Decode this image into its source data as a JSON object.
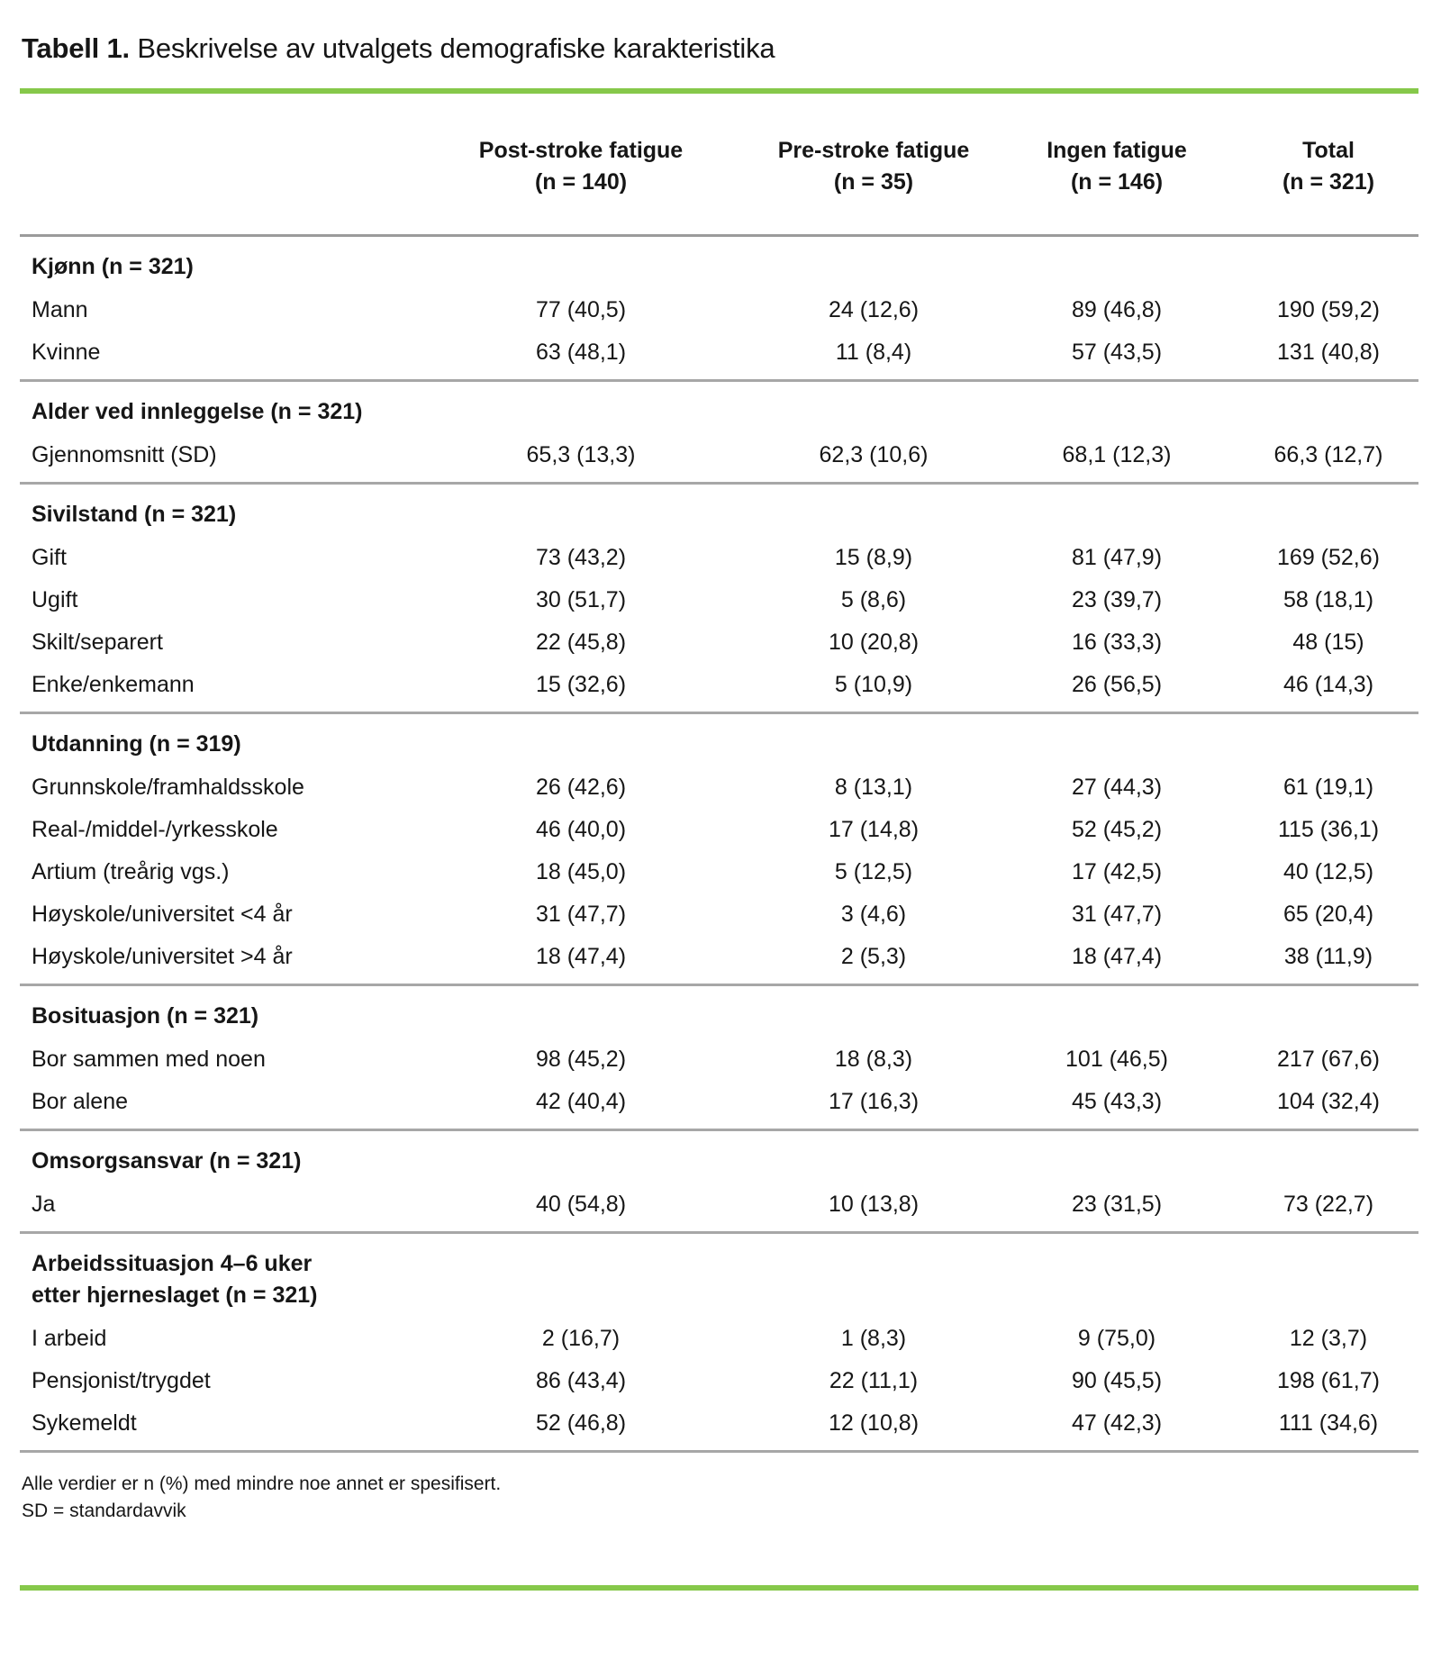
{
  "title": {
    "number": "Tabell 1.",
    "caption": "Beskrivelse av utvalgets demografiske karakteristika"
  },
  "colors": {
    "accent_green": "#86C84A",
    "divider_gray": "#a7a7a7"
  },
  "table": {
    "columns": [
      {
        "name": "Post-stroke fatigue",
        "n": "(n = 140)"
      },
      {
        "name": "Pre-stroke fatigue",
        "n": "(n = 35)"
      },
      {
        "name": "Ingen fatigue",
        "n": "(n = 146)"
      },
      {
        "name": "Total",
        "n": "(n = 321)"
      }
    ],
    "sections": [
      {
        "header": [
          "Kjønn (n = 321)"
        ],
        "rows": [
          {
            "label": "Mann",
            "values": [
              "77 (40,5)",
              "24 (12,6)",
              "89 (46,8)",
              "190 (59,2)"
            ]
          },
          {
            "label": "Kvinne",
            "values": [
              "63 (48,1)",
              "11 (8,4)",
              "57 (43,5)",
              "131 (40,8)"
            ]
          }
        ]
      },
      {
        "header": [
          "Alder ved innleggelse (n = 321)"
        ],
        "rows": [
          {
            "label": "Gjennomsnitt (SD)",
            "values": [
              "65,3 (13,3)",
              "62,3 (10,6)",
              "68,1 (12,3)",
              "66,3 (12,7)"
            ]
          }
        ]
      },
      {
        "header": [
          "Sivilstand (n = 321)"
        ],
        "rows": [
          {
            "label": "Gift",
            "values": [
              "73 (43,2)",
              "15 (8,9)",
              "81 (47,9)",
              "169 (52,6)"
            ]
          },
          {
            "label": "Ugift",
            "values": [
              "30 (51,7)",
              "5 (8,6)",
              "23 (39,7)",
              "58 (18,1)"
            ]
          },
          {
            "label": "Skilt/separert",
            "values": [
              "22 (45,8)",
              "10 (20,8)",
              "16 (33,3)",
              "48 (15)"
            ]
          },
          {
            "label": "Enke/enkemann",
            "values": [
              "15 (32,6)",
              "5 (10,9)",
              "26 (56,5)",
              "46 (14,3)"
            ]
          }
        ]
      },
      {
        "header": [
          "Utdanning (n = 319)"
        ],
        "rows": [
          {
            "label": "Grunnskole/framhaldsskole",
            "values": [
              "26 (42,6)",
              "8 (13,1)",
              "27 (44,3)",
              "61 (19,1)"
            ]
          },
          {
            "label": "Real-/middel-/yrkesskole",
            "values": [
              "46 (40,0)",
              "17 (14,8)",
              "52 (45,2)",
              "115 (36,1)"
            ]
          },
          {
            "label": "Artium (treårig vgs.)",
            "values": [
              "18 (45,0)",
              "5 (12,5)",
              "17 (42,5)",
              "40 (12,5)"
            ]
          },
          {
            "label": "Høyskole/universitet <4 år",
            "values": [
              "31 (47,7)",
              "3 (4,6)",
              "31 (47,7)",
              "65 (20,4)"
            ]
          },
          {
            "label": "Høyskole/universitet >4 år",
            "values": [
              "18 (47,4)",
              "2 (5,3)",
              "18 (47,4)",
              "38 (11,9)"
            ]
          }
        ]
      },
      {
        "header": [
          "Bosituasjon (n = 321)"
        ],
        "rows": [
          {
            "label": "Bor sammen med noen",
            "values": [
              "98 (45,2)",
              "18 (8,3)",
              "101 (46,5)",
              "217 (67,6)"
            ]
          },
          {
            "label": "Bor alene",
            "values": [
              "42 (40,4)",
              "17 (16,3)",
              "45 (43,3)",
              "104 (32,4)"
            ]
          }
        ]
      },
      {
        "header": [
          "Omsorgsansvar (n = 321)"
        ],
        "rows": [
          {
            "label": "Ja",
            "values": [
              "40 (54,8)",
              "10 (13,8)",
              "23 (31,5)",
              "73 (22,7)"
            ]
          }
        ]
      },
      {
        "header": [
          "Arbeidssituasjon 4–6 uker",
          "etter hjerneslaget (n = 321)"
        ],
        "rows": [
          {
            "label": "I arbeid",
            "values": [
              "2 (16,7)",
              "1 (8,3)",
              "9 (75,0)",
              "12 (3,7)"
            ]
          },
          {
            "label": "Pensjonist/trygdet",
            "values": [
              "86 (43,4)",
              "22 (11,1)",
              "90 (45,5)",
              "198 (61,7)"
            ]
          },
          {
            "label": "Sykemeldt",
            "values": [
              "52 (46,8)",
              "12 (10,8)",
              "47 (42,3)",
              "111 (34,6)"
            ]
          }
        ]
      }
    ]
  },
  "footnotes": [
    "Alle verdier er n (%) med mindre noe annet er spesifisert.",
    "SD = standardavvik"
  ]
}
